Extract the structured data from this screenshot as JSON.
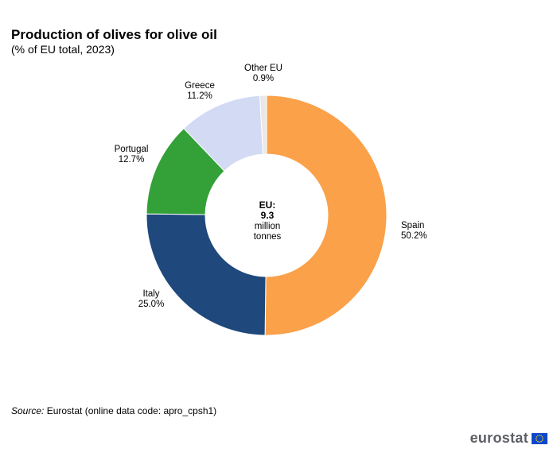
{
  "chart_data": {
    "type": "pie",
    "variant": "donut",
    "title": "Production of olives for olive oil",
    "subtitle": "(% of EU total, 2023)",
    "slices": [
      {
        "label": "Spain",
        "value_label": "50.2%",
        "value": 50.2,
        "color": "#FAA14A"
      },
      {
        "label": "Italy",
        "value_label": "25.0%",
        "value": 25.0,
        "color": "#1F497D"
      },
      {
        "label": "Portugal",
        "value_label": "12.7%",
        "value": 12.7,
        "color": "#33A137"
      },
      {
        "label": "Greece",
        "value_label": "11.2%",
        "value": 11.2,
        "color": "#D2DAF4"
      },
      {
        "label": "Other EU",
        "value_label": "0.9%",
        "value": 0.9,
        "color": "#E8E8E8"
      }
    ],
    "center": {
      "line1": "EU:",
      "line2": "9.3",
      "line3": "million",
      "line4": "tonnes"
    }
  },
  "source": {
    "label": "Source:",
    "text": "Eurostat (online data code: apro_cpsh1)"
  },
  "brand": {
    "name": "eurostat",
    "flag_color": "#0E47CB",
    "star_color": "#FFDD00"
  }
}
